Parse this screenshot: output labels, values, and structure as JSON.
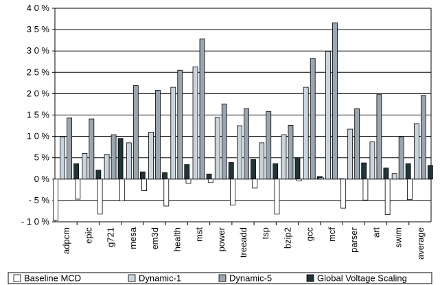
{
  "chart_data": {
    "type": "bar",
    "title": "",
    "xlabel": "",
    "ylabel": "",
    "ylim": [
      -10,
      40
    ],
    "yticks": [
      -10,
      -5,
      0,
      5,
      10,
      15,
      20,
      25,
      30,
      35,
      40
    ],
    "ytick_labels": [
      "- 1 0 %",
      "- 5 %",
      "0 %",
      "5 %",
      "1 0 %",
      "1 5 %",
      "2 0 %",
      "2 5 %",
      "3 0 %",
      "3 5 %",
      "4 0 %"
    ],
    "grid": true,
    "legend_position": "bottom",
    "categories": [
      "adpcm",
      "epic",
      "g721",
      "mesa",
      "em3d",
      "health",
      "mst",
      "power",
      "treeadd",
      "tsp",
      "bzip2",
      "gcc",
      "mcf",
      "parser",
      "art",
      "swim",
      "average"
    ],
    "series": [
      {
        "name": "Baseline MCD",
        "color": "#ffffff",
        "values": [
          -9.7,
          -4.7,
          -8.2,
          -5.1,
          -2.7,
          -6.3,
          -1.0,
          -0.8,
          -6.1,
          -2.1,
          -8.2,
          -0.4,
          0.3,
          -6.8,
          -4.9,
          -8.3,
          -4.8
        ]
      },
      {
        "name": "Dynamic-1",
        "color": "#c9d4dd",
        "values": [
          9.9,
          6.0,
          5.8,
          8.5,
          11.0,
          21.5,
          26.3,
          14.4,
          12.5,
          8.5,
          10.4,
          21.5,
          29.9,
          11.7,
          8.7,
          1.3,
          13.0
        ]
      },
      {
        "name": "Dynamic-5",
        "color": "#99a5b0",
        "values": [
          14.3,
          14.1,
          10.4,
          21.9,
          20.8,
          25.5,
          32.8,
          17.6,
          16.5,
          15.8,
          12.6,
          28.2,
          36.6,
          16.5,
          19.8,
          9.9,
          19.6
        ]
      },
      {
        "name": "Global Voltage Scaling",
        "color": "#213538",
        "values": [
          3.6,
          2.1,
          9.5,
          1.7,
          1.5,
          3.4,
          1.2,
          3.9,
          4.6,
          3.6,
          5.0,
          0.6,
          0.1,
          3.8,
          2.6,
          3.6,
          3.2
        ]
      }
    ]
  }
}
